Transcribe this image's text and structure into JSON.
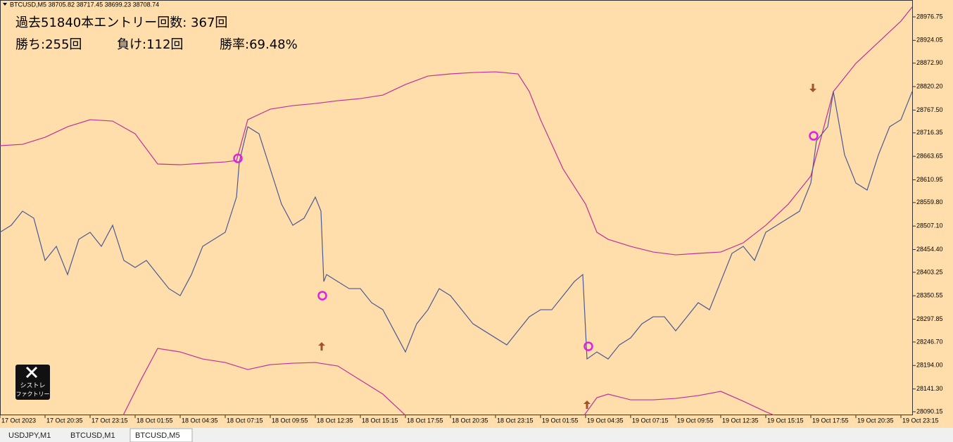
{
  "header": "BTCUSD,M5  38705.82 38717.45 38699.23 38708.74",
  "logo": [
    "シストレ",
    "ファクトリー"
  ],
  "tabs": [
    "USDJPY,M1",
    "BTCUSD,M1",
    "BTCUSD,M5"
  ],
  "chart_data": {
    "type": "line",
    "annotations": [
      "過去51840本エントリー回数: 367回",
      "勝ち:255回",
      "負け:112回",
      "勝率:69.48%"
    ],
    "xlim": [
      0,
      648.5
    ],
    "xticks": [
      {
        "value": 0,
        "label": "17 Oct 2023"
      },
      {
        "value": 32,
        "label": "17 Oct 20:35"
      },
      {
        "value": 64,
        "label": "17 Oct 23:15"
      },
      {
        "value": 96,
        "label": "18 Oct 01:55"
      },
      {
        "value": 128,
        "label": "18 Oct 04:35"
      },
      {
        "value": 160,
        "label": "18 Oct 07:15"
      },
      {
        "value": 192,
        "label": "18 Oct 09:55"
      },
      {
        "value": 224,
        "label": "18 Oct 12:35"
      },
      {
        "value": 256,
        "label": "18 Oct 15:15"
      },
      {
        "value": 288,
        "label": "18 Oct 17:55"
      },
      {
        "value": 320,
        "label": "18 Oct 20:35"
      },
      {
        "value": 352,
        "label": "18 Oct 23:15"
      },
      {
        "value": 384,
        "label": "19 Oct 01:55"
      },
      {
        "value": 416,
        "label": "19 Oct 04:35"
      },
      {
        "value": 448,
        "label": "19 Oct 07:15"
      },
      {
        "value": 480,
        "label": "19 Oct 09:55"
      },
      {
        "value": 512,
        "label": "19 Oct 12:35"
      },
      {
        "value": 544,
        "label": "19 Oct 15:15"
      },
      {
        "value": 576,
        "label": "19 Oct 17:55"
      },
      {
        "value": 608,
        "label": "19 Oct 20:35"
      },
      {
        "value": 640,
        "label": "19 Oct 23:15"
      }
    ],
    "ylim": [
      28082.25,
      29002.04
    ],
    "yticks": [
      28976.75,
      28924.05,
      {
        "value": 28872.9,
        "label": "28872.90"
      },
      {
        "value": 28820.2,
        "label": "28820.20"
      },
      {
        "value": 28767.5,
        "label": "28767.50"
      },
      28716.35,
      28663.65,
      28610.95,
      {
        "value": 28559.8,
        "label": "28559.80"
      },
      {
        "value": 28507.1,
        "label": "28507.10"
      },
      {
        "value": 28454.4,
        "label": "28454.40"
      },
      28403.25,
      28350.55,
      28297.85,
      {
        "value": 28246.7,
        "label": "28246.70"
      },
      {
        "value": 28194,
        "label": "28194.00"
      },
      {
        "value": 28141.3,
        "label": "28141.30"
      },
      28090.15
    ],
    "grid": false,
    "price": {
      "color": "#4b5a96",
      "x": [
        0,
        8,
        16,
        24,
        32,
        40,
        48,
        56,
        64,
        72,
        80,
        88,
        96,
        104,
        112,
        120,
        128,
        136,
        144,
        152,
        160,
        168,
        170,
        176,
        184,
        192,
        200,
        208,
        216,
        224,
        228,
        230,
        232,
        240,
        248,
        256,
        264,
        272,
        280,
        288,
        296,
        304,
        312,
        320,
        328,
        336,
        344,
        352,
        360,
        368,
        376,
        384,
        392,
        400,
        408,
        414,
        417,
        424,
        432,
        440,
        448,
        456,
        464,
        472,
        480,
        488,
        496,
        504,
        512,
        520,
        528,
        536,
        544,
        552,
        560,
        568,
        576,
        580,
        588,
        592,
        600,
        608,
        616,
        624,
        632,
        640,
        648
      ],
      "values": [
        28493.1,
        28508.9,
        28540.5,
        28524.7,
        28429.9,
        28461.5,
        28398.2,
        28477.3,
        28493.1,
        28461.5,
        28508.9,
        28429.9,
        28414.1,
        28429.9,
        28398.2,
        28366.6,
        28350.8,
        28398.2,
        28461.5,
        28477.3,
        28493.1,
        28572.1,
        28651.1,
        28730.1,
        28714.3,
        28635.3,
        28556.3,
        28508.9,
        28524.7,
        28572.1,
        28540.5,
        28382.4,
        28398.2,
        28382.4,
        28366.6,
        28366.6,
        28335.0,
        28319.2,
        28271.8,
        28224.4,
        28287.6,
        28319.2,
        28366.6,
        28350.8,
        28319.2,
        28287.6,
        28271.8,
        28256.0,
        28240.2,
        28271.8,
        28303.4,
        28319.2,
        28319.2,
        28350.8,
        28382.4,
        28398.2,
        28208.6,
        28224.4,
        28208.6,
        28240.2,
        28256.0,
        28287.6,
        28303.4,
        28303.4,
        28271.8,
        28303.4,
        28335.0,
        28319.2,
        28382.4,
        28445.7,
        28461.5,
        28429.9,
        28493.1,
        28508.9,
        28524.7,
        28540.5,
        28603.7,
        28698.5,
        28730.1,
        28809.1,
        28666.9,
        28603.7,
        28587.9,
        28666.9,
        28730.1,
        28745.9,
        28809.1
      ]
    },
    "upper_band": {
      "color": "#c0309a",
      "x": [
        0,
        16,
        32,
        48,
        64,
        80,
        96,
        112,
        128,
        144,
        160,
        168,
        176,
        192,
        208,
        224,
        240,
        256,
        272,
        288,
        304,
        320,
        336,
        352,
        368,
        376,
        384,
        400,
        416,
        424,
        432,
        448,
        464,
        480,
        496,
        512,
        528,
        544,
        560,
        576,
        592,
        608,
        624,
        640,
        648
      ],
      "values": [
        28687.5,
        28690.6,
        28706.4,
        28730.1,
        28745.9,
        28742.8,
        28714.3,
        28646.4,
        28644.8,
        28648.0,
        28651.1,
        28654.3,
        28745.9,
        28769.6,
        28777.5,
        28782.3,
        28788.6,
        28793.3,
        28801.2,
        28825.0,
        28843.9,
        28848.7,
        28851.8,
        28853.4,
        28848.7,
        28809.1,
        28745.9,
        28635.3,
        28556.3,
        28493.1,
        28477.3,
        28461.5,
        28448.8,
        28442.5,
        28445.7,
        28448.8,
        28469.4,
        28508.9,
        28556.3,
        28619.5,
        28809.1,
        28872.4,
        28919.8,
        28967.2,
        28998.8
      ]
    },
    "lower_band": {
      "color": "#c0309a",
      "x": [
        87.5,
        100,
        112,
        128,
        144,
        160,
        176,
        192,
        208,
        224,
        240,
        256,
        272,
        288,
        350,
        415,
        424,
        432,
        448,
        464,
        480,
        496,
        512,
        528,
        544,
        550
      ],
      "values": [
        28082.2,
        28161.2,
        28232.3,
        28224.4,
        28208.6,
        28200.7,
        28184.9,
        28195.9,
        28199.1,
        28200.7,
        28192.8,
        28161.2,
        28129.6,
        28082.2,
        null,
        28082.2,
        28121.7,
        28129.6,
        28116.9,
        28116.9,
        28120.1,
        28126.4,
        28135.9,
        28113.8,
        28090.1,
        28082.2
      ]
    },
    "entries": {
      "color": "#e020e0",
      "x": [
        169,
        229,
        418,
        578
      ],
      "values": [
        28659.0,
        28350.8,
        28237.0,
        28709.6
      ]
    },
    "arrows_up": {
      "color": "#a0522d",
      "x": [
        228.5,
        417
      ],
      "values": [
        28237.0,
        28105.9
      ]
    },
    "arrows_down": {
      "color": "#a0522d",
      "x": [
        577.5
      ],
      "values": [
        28817.1
      ]
    }
  }
}
